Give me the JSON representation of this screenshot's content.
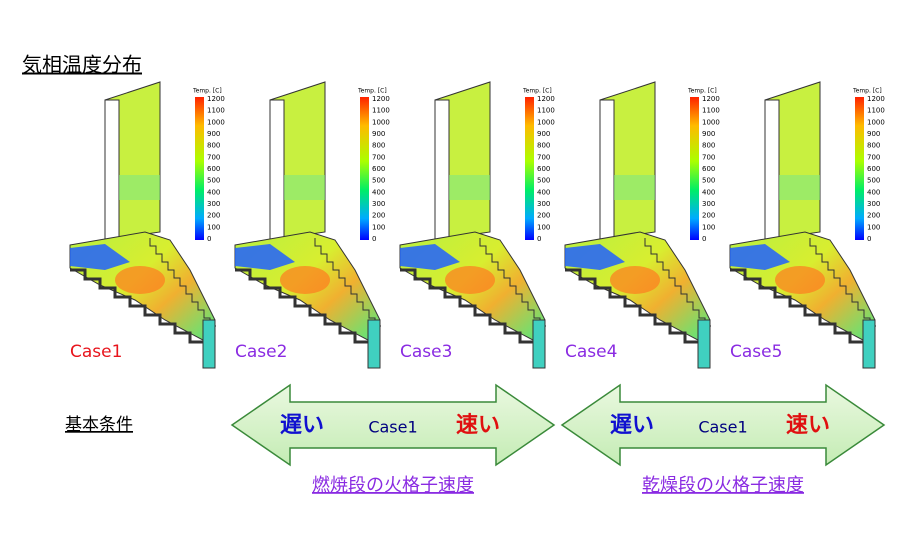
{
  "title": "気相温度分布",
  "panels": [
    {
      "case": "Case1",
      "color": "#e8141c",
      "colorbar_title": "Temp. [C]",
      "colorbar_ticks": [
        1200,
        1100,
        1000,
        900,
        800,
        700,
        600,
        500,
        400,
        300,
        200,
        100,
        0
      ]
    },
    {
      "case": "Case2",
      "color": "#8a2be2",
      "colorbar_title": "Temp. [C]",
      "colorbar_ticks": [
        1200,
        1100,
        1000,
        900,
        800,
        700,
        600,
        500,
        400,
        300,
        200,
        100,
        0
      ]
    },
    {
      "case": "Case3",
      "color": "#8a2be2",
      "colorbar_title": "Temp. [C]",
      "colorbar_ticks": [
        1200,
        1100,
        1000,
        900,
        800,
        700,
        600,
        500,
        400,
        300,
        200,
        100,
        0
      ]
    },
    {
      "case": "Case4",
      "color": "#8a2be2",
      "colorbar_title": "Temp. [C]",
      "colorbar_ticks": [
        1200,
        1100,
        1000,
        900,
        800,
        700,
        600,
        500,
        400,
        300,
        200,
        100,
        0
      ]
    },
    {
      "case": "Case5",
      "color": "#8a2be2",
      "colorbar_title": "Temp. [C]",
      "colorbar_ticks": [
        1200,
        1100,
        1000,
        900,
        800,
        700,
        600,
        500,
        400,
        300,
        200,
        100,
        0
      ]
    }
  ],
  "base_condition": "基本条件",
  "arrows": [
    {
      "slow": "遅い",
      "center": "Case1",
      "fast": "速い",
      "caption": "燃焼段の火格子速度"
    },
    {
      "slow": "遅い",
      "center": "Case1",
      "fast": "速い",
      "caption": "乾燥段の火格子速度"
    }
  ]
}
